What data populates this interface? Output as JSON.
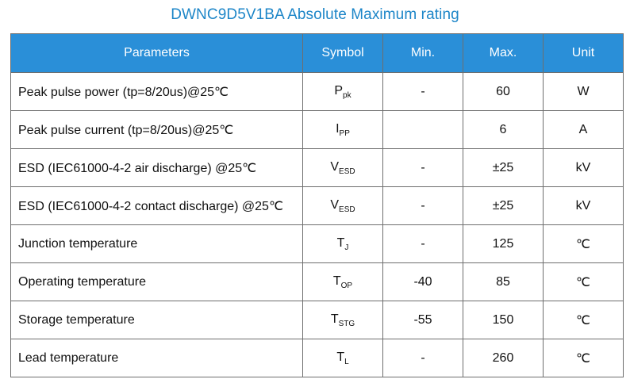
{
  "title": "DWNC9D5V1BA Absolute Maximum rating",
  "table": {
    "headers": [
      "Parameters",
      "Symbol",
      "Min.",
      "Max.",
      "Unit"
    ],
    "rows": [
      {
        "parameter": "Peak pulse power (tp=8/20us)@25℃",
        "symbol": "P",
        "symbol_sub": "pk",
        "min": "-",
        "max": "60",
        "unit": "W"
      },
      {
        "parameter": "Peak pulse current (tp=8/20us)@25℃",
        "symbol": "I",
        "symbol_sub": "PP",
        "min": "",
        "max": "6",
        "unit": "A"
      },
      {
        "parameter": "ESD (IEC61000-4-2 air discharge) @25℃",
        "symbol": "V",
        "symbol_sub": "ESD",
        "min": "-",
        "max": "±25",
        "unit": "kV"
      },
      {
        "parameter": "ESD (IEC61000-4-2 contact discharge) @25℃",
        "symbol": "V",
        "symbol_sub": "ESD",
        "min": "-",
        "max": "±25",
        "unit": "kV"
      },
      {
        "parameter": "Junction temperature",
        "symbol": "T",
        "symbol_sub": "J",
        "min": "-",
        "max": "125",
        "unit": "℃"
      },
      {
        "parameter": "Operating temperature",
        "symbol": "T",
        "symbol_sub": "OP",
        "min": "-40",
        "max": "85",
        "unit": "℃"
      },
      {
        "parameter": "Storage temperature",
        "symbol": "T",
        "symbol_sub": "STG",
        "min": "-55",
        "max": "150",
        "unit": "℃"
      },
      {
        "parameter": "Lead temperature",
        "symbol": "T",
        "symbol_sub": "L",
        "min": "-",
        "max": "260",
        "unit": "℃"
      }
    ]
  },
  "colors": {
    "title": "#1d86c8",
    "header_background": "#2a8fd8",
    "header_text": "#ffffff",
    "border": "#6e6e6e"
  }
}
